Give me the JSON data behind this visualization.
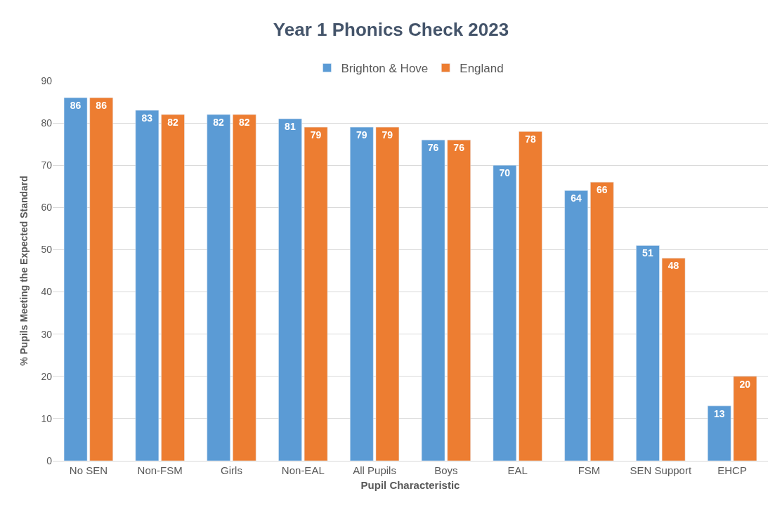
{
  "chart_data": {
    "type": "bar",
    "title": "Year 1 Phonics Check 2023",
    "xlabel": "Pupil Characteristic",
    "ylabel": "% Pupils Meeting the Expected Standard",
    "categories": [
      "No SEN",
      "Non-FSM",
      "Girls",
      "Non-EAL",
      "All Pupils",
      "Boys",
      "EAL",
      "FSM",
      "SEN Support",
      "EHCP"
    ],
    "series": [
      {
        "name": "Brighton & Hove",
        "color": "#5b9bd5",
        "values": [
          86,
          83,
          82,
          81,
          79,
          76,
          70,
          64,
          51,
          13
        ]
      },
      {
        "name": "England",
        "color": "#ed7d31",
        "values": [
          86,
          82,
          82,
          79,
          79,
          76,
          78,
          66,
          48,
          20
        ]
      }
    ],
    "ylim": [
      0,
      90
    ],
    "yticks": [
      0,
      10,
      20,
      30,
      40,
      50,
      60,
      70,
      80,
      90
    ],
    "grid": "y",
    "legend": "top",
    "data_labels": true
  }
}
